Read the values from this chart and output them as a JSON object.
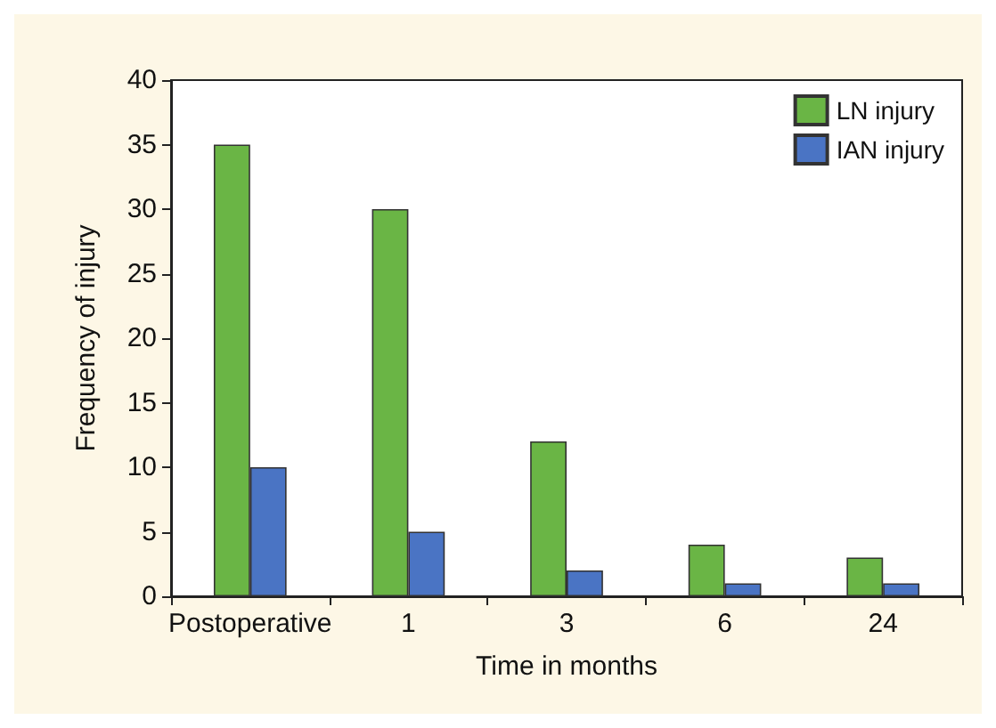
{
  "chart_data": {
    "type": "bar",
    "xlabel": "Time in months",
    "ylabel": "Frequency of injury",
    "categories": [
      "Postoperative",
      "1",
      "3",
      "6",
      "24"
    ],
    "series": [
      {
        "name": "LN injury",
        "color": "#6ab545",
        "values": [
          35,
          30,
          12,
          4,
          3
        ]
      },
      {
        "name": "IAN injury",
        "color": "#4a74c4",
        "values": [
          10,
          5,
          2,
          1,
          1
        ]
      }
    ],
    "ylim": [
      0,
      40
    ],
    "yticks": [
      0,
      5,
      10,
      15,
      20,
      25,
      30,
      35,
      40
    ],
    "grid": false,
    "legend": "top right"
  }
}
